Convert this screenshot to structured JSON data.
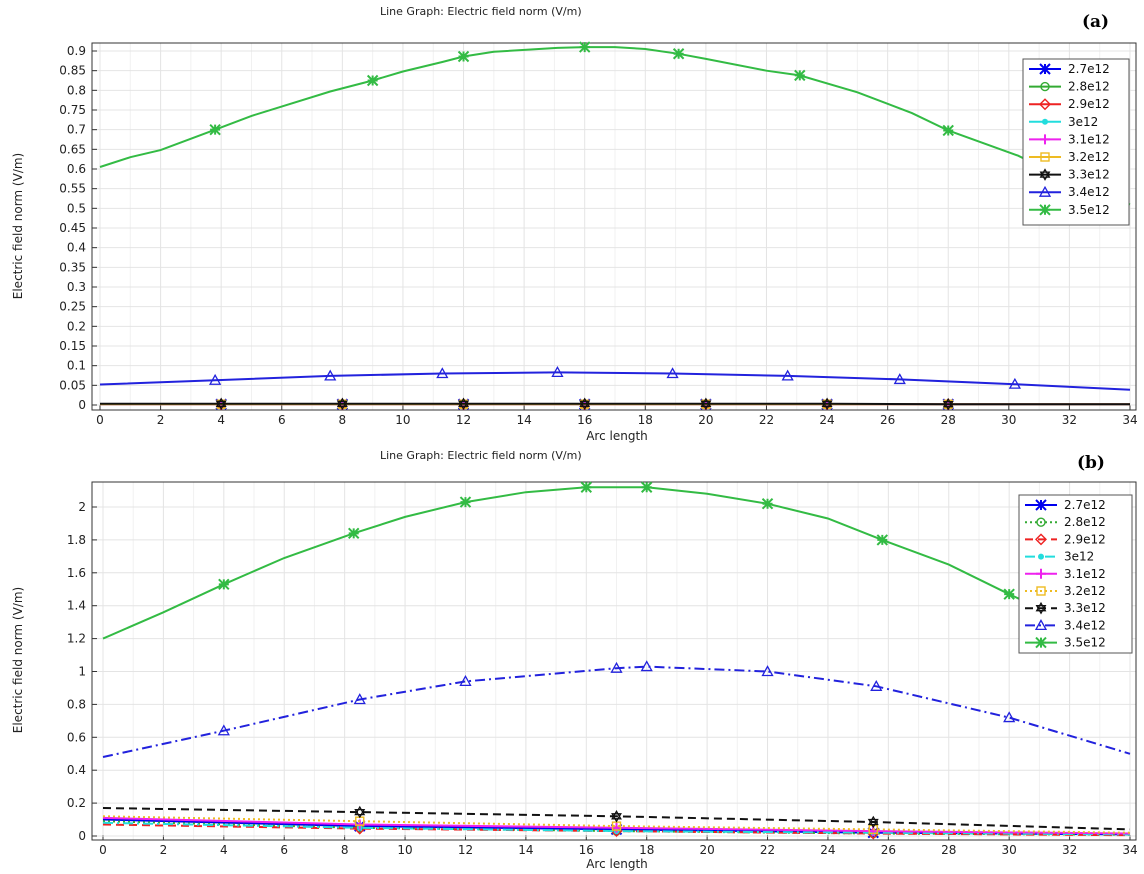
{
  "chart_data": [
    {
      "type": "line",
      "panel_label": "(a)",
      "title": "Line Graph: Electric field norm (V/m)",
      "xlabel": "Arc length",
      "ylabel": "Electric field norm (V/m)",
      "xlim": [
        0,
        34
      ],
      "ylim": [
        0,
        0.9
      ],
      "xticks": [
        0,
        2,
        4,
        6,
        8,
        10,
        12,
        14,
        16,
        18,
        20,
        22,
        24,
        26,
        28,
        30,
        32,
        34
      ],
      "yticks": [
        0,
        0.05,
        0.1,
        0.15,
        0.2,
        0.25,
        0.3,
        0.35,
        0.4,
        0.45,
        0.5,
        0.55,
        0.6,
        0.65,
        0.7,
        0.75,
        0.8,
        0.85,
        0.9
      ],
      "legend_position": "top-right",
      "series": [
        {
          "name": "2.7e12",
          "color": "#0000ee",
          "marker": "star",
          "dash": "solid",
          "x": [
            0,
            4,
            8,
            12,
            16,
            20,
            24,
            28,
            34
          ],
          "y": [
            0.002,
            0.002,
            0.002,
            0.002,
            0.002,
            0.002,
            0.002,
            0.002,
            0.002
          ]
        },
        {
          "name": "2.8e12",
          "color": "#33aa33",
          "marker": "circle",
          "dash": "solid",
          "x": [
            0,
            4,
            8,
            12,
            16,
            20,
            24,
            28,
            34
          ],
          "y": [
            0.002,
            0.002,
            0.002,
            0.002,
            0.002,
            0.002,
            0.002,
            0.002,
            0.002
          ]
        },
        {
          "name": "2.9e12",
          "color": "#ee2222",
          "marker": "diamond",
          "dash": "solid",
          "x": [
            0,
            4,
            8,
            12,
            16,
            20,
            24,
            28,
            34
          ],
          "y": [
            0.002,
            0.002,
            0.002,
            0.002,
            0.002,
            0.002,
            0.002,
            0.002,
            0.002
          ]
        },
        {
          "name": "3e12",
          "color": "#22dddd",
          "marker": "dot",
          "dash": "solid",
          "x": [
            0,
            4,
            8,
            12,
            16,
            20,
            24,
            28,
            34
          ],
          "y": [
            0.002,
            0.002,
            0.002,
            0.002,
            0.002,
            0.002,
            0.002,
            0.002,
            0.002
          ]
        },
        {
          "name": "3.1e12",
          "color": "#ee22ee",
          "marker": "plus",
          "dash": "solid",
          "x": [
            0,
            4,
            8,
            12,
            16,
            20,
            24,
            28,
            34
          ],
          "y": [
            0.002,
            0.002,
            0.002,
            0.002,
            0.002,
            0.002,
            0.002,
            0.002,
            0.002
          ]
        },
        {
          "name": "3.2e12",
          "color": "#eebb22",
          "marker": "square",
          "dash": "solid",
          "x": [
            0,
            4,
            8,
            12,
            16,
            20,
            24,
            28,
            34
          ],
          "y": [
            0.002,
            0.002,
            0.002,
            0.002,
            0.002,
            0.002,
            0.002,
            0.002,
            0.002
          ]
        },
        {
          "name": "3.3e12",
          "color": "#111111",
          "marker": "hexagram",
          "dash": "solid",
          "x": [
            0,
            4,
            8,
            12,
            16,
            20,
            24,
            28,
            34
          ],
          "y": [
            0.003,
            0.003,
            0.003,
            0.003,
            0.003,
            0.003,
            0.003,
            0.002,
            0.002
          ]
        },
        {
          "name": "3.4e12",
          "color": "#2222dd",
          "marker": "triangle",
          "dash": "solid",
          "x": [
            0,
            3.8,
            7.6,
            11.3,
            15.1,
            18.9,
            22.7,
            26.4,
            30.2,
            34
          ],
          "y": [
            0.052,
            0.063,
            0.074,
            0.08,
            0.083,
            0.08,
            0.074,
            0.065,
            0.053,
            0.039
          ]
        },
        {
          "name": "3.5e12",
          "color": "#33bb44",
          "marker": "star",
          "dash": "solid",
          "x": [
            0,
            1,
            2,
            3.8,
            5,
            7.6,
            9,
            10,
            11.3,
            12,
            13,
            15.1,
            16,
            17,
            18,
            19.1,
            20,
            22,
            23.1,
            25,
            26.8,
            28,
            30.3,
            32,
            34
          ],
          "y": [
            0.605,
            0.63,
            0.648,
            0.7,
            0.735,
            0.797,
            0.825,
            0.848,
            0.872,
            0.886,
            0.898,
            0.908,
            0.91,
            0.91,
            0.905,
            0.893,
            0.88,
            0.85,
            0.838,
            0.795,
            0.742,
            0.698,
            0.634,
            0.57,
            0.51
          ]
        }
      ]
    },
    {
      "type": "line",
      "panel_label": "(b)",
      "title": "Line Graph: Electric field norm (V/m)",
      "xlabel": "Arc length",
      "ylabel": "Electric field norm (V/m)",
      "xlim": [
        0,
        34
      ],
      "ylim": [
        0,
        2.1
      ],
      "xticks": [
        0,
        2,
        4,
        6,
        8,
        10,
        12,
        14,
        16,
        18,
        20,
        22,
        24,
        26,
        28,
        30,
        32,
        34
      ],
      "yticks": [
        0,
        0.2,
        0.4,
        0.6,
        0.8,
        1,
        1.2,
        1.4,
        1.6,
        1.8,
        2
      ],
      "legend_position": "top-right",
      "series": [
        {
          "name": "2.7e12",
          "color": "#0000ee",
          "marker": "star",
          "dash": "solid",
          "x": [
            0,
            8.5,
            17,
            25.5,
            34
          ],
          "y": [
            0.1,
            0.06,
            0.04,
            0.02,
            0.01
          ]
        },
        {
          "name": "2.8e12",
          "color": "#33aa33",
          "marker": "circle",
          "dash": "dot",
          "x": [
            0,
            8.5,
            17,
            25.5,
            34
          ],
          "y": [
            0.09,
            0.05,
            0.03,
            0.015,
            0.008
          ]
        },
        {
          "name": "2.9e12",
          "color": "#ee2222",
          "marker": "diamond",
          "dash": "dash",
          "x": [
            0,
            8.5,
            17,
            25.5,
            34
          ],
          "y": [
            0.07,
            0.045,
            0.03,
            0.015,
            0.005
          ]
        },
        {
          "name": "3e12",
          "color": "#22dddd",
          "marker": "dot",
          "dash": "dashdot",
          "x": [
            0,
            8.5,
            17,
            25.5,
            34
          ],
          "y": [
            0.08,
            0.05,
            0.03,
            0.02,
            0.01
          ]
        },
        {
          "name": "3.1e12",
          "color": "#ee22ee",
          "marker": "plus",
          "dash": "solid",
          "x": [
            0,
            8.5,
            17,
            25.5,
            34
          ],
          "y": [
            0.11,
            0.07,
            0.05,
            0.03,
            0.015
          ]
        },
        {
          "name": "3.2e12",
          "color": "#eebb22",
          "marker": "square",
          "dash": "dot",
          "x": [
            0,
            8.5,
            17,
            25.5,
            34
          ],
          "y": [
            0.12,
            0.09,
            0.06,
            0.04,
            0.02
          ]
        },
        {
          "name": "3.3e12",
          "color": "#111111",
          "marker": "hexagram",
          "dash": "dash",
          "x": [
            0,
            8.5,
            17,
            25.5,
            34
          ],
          "y": [
            0.17,
            0.145,
            0.12,
            0.085,
            0.04
          ]
        },
        {
          "name": "3.4e12",
          "color": "#2222dd",
          "marker": "triangle",
          "dash": "dashdot",
          "x": [
            0,
            4,
            8.5,
            12,
            17,
            18,
            22,
            25.6,
            30,
            34
          ],
          "y": [
            0.48,
            0.64,
            0.83,
            0.94,
            1.02,
            1.03,
            1.0,
            0.91,
            0.72,
            0.5
          ]
        },
        {
          "name": "3.5e12",
          "color": "#33bb44",
          "marker": "star",
          "dash": "solid",
          "x": [
            0,
            2,
            4,
            6,
            8.3,
            10,
            12,
            14,
            16,
            17,
            18,
            20,
            22,
            24,
            25.8,
            28,
            30,
            32,
            34
          ],
          "y": [
            1.2,
            1.36,
            1.53,
            1.69,
            1.84,
            1.94,
            2.03,
            2.09,
            2.12,
            2.12,
            2.12,
            2.08,
            2.02,
            1.93,
            1.8,
            1.65,
            1.47,
            1.3,
            1.14
          ]
        }
      ]
    }
  ]
}
